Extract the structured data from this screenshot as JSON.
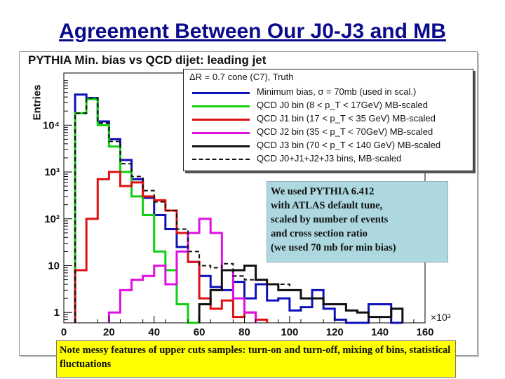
{
  "slide_title": "Agreement Between Our J0-J3 and MB",
  "note": "We used PYTHIA 6.412\nwith ATLAS default tune,\nscaled by number of events\nand cross section ratio\n(we used 70 mb for min bias)",
  "bottom_note": "Note messy features of upper cuts samples: turn-on and turn-off, mixing of bins, statistical fluctuations",
  "chart_data": {
    "type": "line",
    "title": "PYTHIA Min. bias vs QCD dijet: leading jet",
    "ylabel": "Entries",
    "xlabel": "",
    "x_multiplier": "×10³",
    "log_y": true,
    "xlim": [
      0,
      160
    ],
    "ylim": [
      0.6,
      130000
    ],
    "x_ticks": [
      0,
      20,
      40,
      60,
      80,
      100,
      120,
      140,
      160
    ],
    "y_ticks": [
      {
        "value": 1,
        "label": "1"
      },
      {
        "value": 10,
        "label": "10"
      },
      {
        "value": 100,
        "label": "10²"
      },
      {
        "value": 1000,
        "label": "10³"
      },
      {
        "value": 10000,
        "label": "10⁴"
      }
    ],
    "legend_header": "ΔR = 0.7 cone (C7), Truth",
    "bin_width": 5,
    "series": [
      {
        "name": "Minimum bias, σ = 70mb (used in scal.)",
        "color": "#1010b8",
        "dash": "solid",
        "x_start": 5,
        "values": [
          45000,
          38000,
          12000,
          5000,
          1800,
          700,
          280,
          120,
          60,
          25,
          12,
          6,
          3.5,
          3,
          4.5,
          2,
          4,
          1.8,
          2,
          1.1,
          1.3,
          3,
          1.2,
          0.7,
          0.6,
          0.6,
          1.5,
          1.5,
          0.6
        ]
      },
      {
        "name": "QCD J0 bin (8 < p_T < 17GeV) MB-scaled",
        "color": "#10d010",
        "dash": "solid",
        "x_start": 5,
        "values": [
          18000,
          36000,
          10000,
          3500,
          1000,
          300,
          120,
          20,
          8,
          1.5,
          0.6
        ]
      },
      {
        "name": "QCD J1 bin (17 < p_T < 35 GeV) MB-scaled",
        "color": "#e01010",
        "dash": "solid",
        "x_start": 5,
        "values": [
          8,
          100,
          700,
          1000,
          500,
          600,
          300,
          250,
          150,
          50,
          12,
          2,
          1.2,
          1.8,
          0.8,
          1,
          0.7
        ]
      },
      {
        "name": "QCD J2 bin (35 < p_T < 70GeV) MB-scaled",
        "color": "#e010e0",
        "dash": "solid",
        "x_start": 20,
        "values": [
          1,
          3,
          5,
          6,
          10,
          4,
          20,
          50,
          100,
          50,
          8,
          2,
          1
        ]
      },
      {
        "name": "QCD J3 bin (70 < p_T < 140 GeV) MB-scaled",
        "color": "#111111",
        "dash": "solid",
        "x_start": 60,
        "values": [
          1.5,
          3,
          8,
          8,
          10,
          5,
          4,
          3,
          3,
          2,
          2,
          1.5,
          1.5,
          1.1,
          1,
          0.8,
          0.8,
          1.2
        ]
      },
      {
        "name": "QCD J0+J1+J2+J3 bins, MB-scaled",
        "color": "#111111",
        "dash": "dashed",
        "x_start": 5,
        "values": [
          18000,
          38000,
          11000,
          4500,
          1500,
          800,
          400,
          230,
          150,
          60,
          20,
          10,
          9,
          11,
          6,
          5,
          5,
          4,
          4,
          3,
          2,
          2,
          1.5,
          1.5,
          1.1,
          1,
          0.8,
          0.8,
          1.2
        ]
      }
    ]
  }
}
